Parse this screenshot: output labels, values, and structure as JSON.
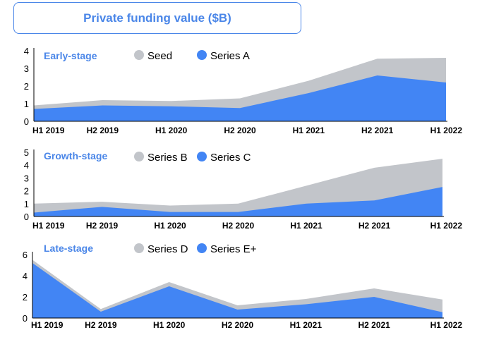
{
  "page": {
    "title": "Private funding value ($B)"
  },
  "colors": {
    "primary": "#4285f4",
    "secondary": "#c2c5ca",
    "title_text": "#4a86e8",
    "axis": "#000000"
  },
  "chart_data": [
    {
      "type": "area",
      "stacked": true,
      "title": "Early-stage",
      "categories": [
        "H1 2019",
        "H2 2019",
        "H1 2020",
        "H2 2020",
        "H1 2021",
        "H2 2021",
        "H1 2022"
      ],
      "ylim": [
        0,
        4
      ],
      "yticks": [
        0,
        1,
        2,
        3,
        4
      ],
      "legend_position": "top",
      "series": [
        {
          "name": "Series A",
          "values": [
            0.7,
            0.9,
            0.85,
            0.75,
            1.6,
            2.6,
            2.2
          ]
        },
        {
          "name": "Seed",
          "values": [
            0.2,
            0.3,
            0.3,
            0.55,
            0.7,
            0.95,
            1.4
          ]
        }
      ]
    },
    {
      "type": "area",
      "stacked": true,
      "title": "Growth-stage",
      "categories": [
        "H1 2019",
        "H2 2019",
        "H1 2020",
        "H2 2020",
        "H1 2021",
        "H2 2021",
        "H1 2022"
      ],
      "ylim": [
        0,
        5
      ],
      "yticks": [
        0,
        1,
        2,
        3,
        4,
        5
      ],
      "legend_position": "top",
      "series": [
        {
          "name": "Series C",
          "values": [
            0.3,
            0.75,
            0.35,
            0.35,
            1.0,
            1.25,
            2.3
          ]
        },
        {
          "name": "Series B",
          "values": [
            0.7,
            0.4,
            0.5,
            0.65,
            1.4,
            2.55,
            2.2
          ]
        }
      ]
    },
    {
      "type": "area",
      "stacked": true,
      "title": "Late-stage",
      "categories": [
        "H1 2019",
        "H2 2019",
        "H1 2020",
        "H2 2020",
        "H1 2021",
        "H2 2021",
        "H1 2022"
      ],
      "ylim": [
        0,
        6
      ],
      "yticks": [
        0,
        2,
        4,
        6
      ],
      "legend_position": "top",
      "series": [
        {
          "name": "Series E+",
          "values": [
            5.2,
            0.6,
            3.0,
            0.8,
            1.3,
            2.0,
            0.55
          ]
        },
        {
          "name": "Series D",
          "values": [
            0.3,
            0.25,
            0.4,
            0.4,
            0.5,
            0.8,
            1.2
          ]
        }
      ]
    }
  ]
}
